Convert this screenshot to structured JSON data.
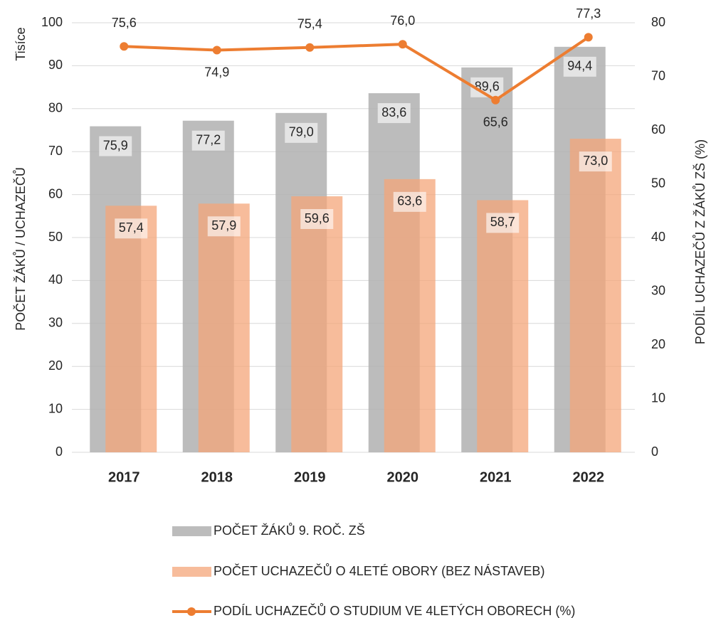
{
  "chart_data": {
    "type": "bar",
    "unit_label": "Tisíce",
    "y_label": "POČET ŽÁKŮ / UCHAZEČŮ",
    "y2_label": "PODÍL UCHAZEČŮ Z ŽÁKŮ ZŠ (%)",
    "categories": [
      "2017",
      "2018",
      "2019",
      "2020",
      "2021",
      "2022"
    ],
    "series": [
      {
        "name": "POČET ŽÁKŮ 9. ROČ. ZŠ",
        "type": "bar",
        "color": "#b0b0b0",
        "values": [
          75.9,
          77.2,
          79.0,
          83.6,
          89.6,
          94.4
        ],
        "value_labels": [
          "75,9",
          "77,2",
          "79,0",
          "83,6",
          "89,6",
          "94,4"
        ]
      },
      {
        "name": "POČET UCHAZEČŮ O 4LETÉ OBORY (BEZ NÁSTAVEB)",
        "type": "bar",
        "color": "#f4a679",
        "values": [
          57.4,
          57.9,
          59.6,
          63.6,
          58.7,
          73.0
        ],
        "value_labels": [
          "57,4",
          "57,9",
          "59,6",
          "63,6",
          "58,7",
          "73,0"
        ]
      },
      {
        "name": "PODÍL UCHAZEČŮ O STUDIUM VE 4LETÝCH OBORECH (%)",
        "type": "line",
        "axis": "y2",
        "color": "#ed7d31",
        "values": [
          75.6,
          74.9,
          75.4,
          76.0,
          65.6,
          77.3
        ],
        "value_labels": [
          "75,6",
          "74,9",
          "75,4",
          "76,0",
          "65,6",
          "77,3"
        ]
      }
    ],
    "ylim": [
      0,
      100
    ],
    "yticks": [
      0,
      10,
      20,
      30,
      40,
      50,
      60,
      70,
      80,
      90,
      100
    ],
    "y2lim": [
      0,
      80
    ],
    "y2ticks": [
      0,
      10,
      20,
      30,
      40,
      50,
      60,
      70,
      80
    ],
    "grid": true
  }
}
